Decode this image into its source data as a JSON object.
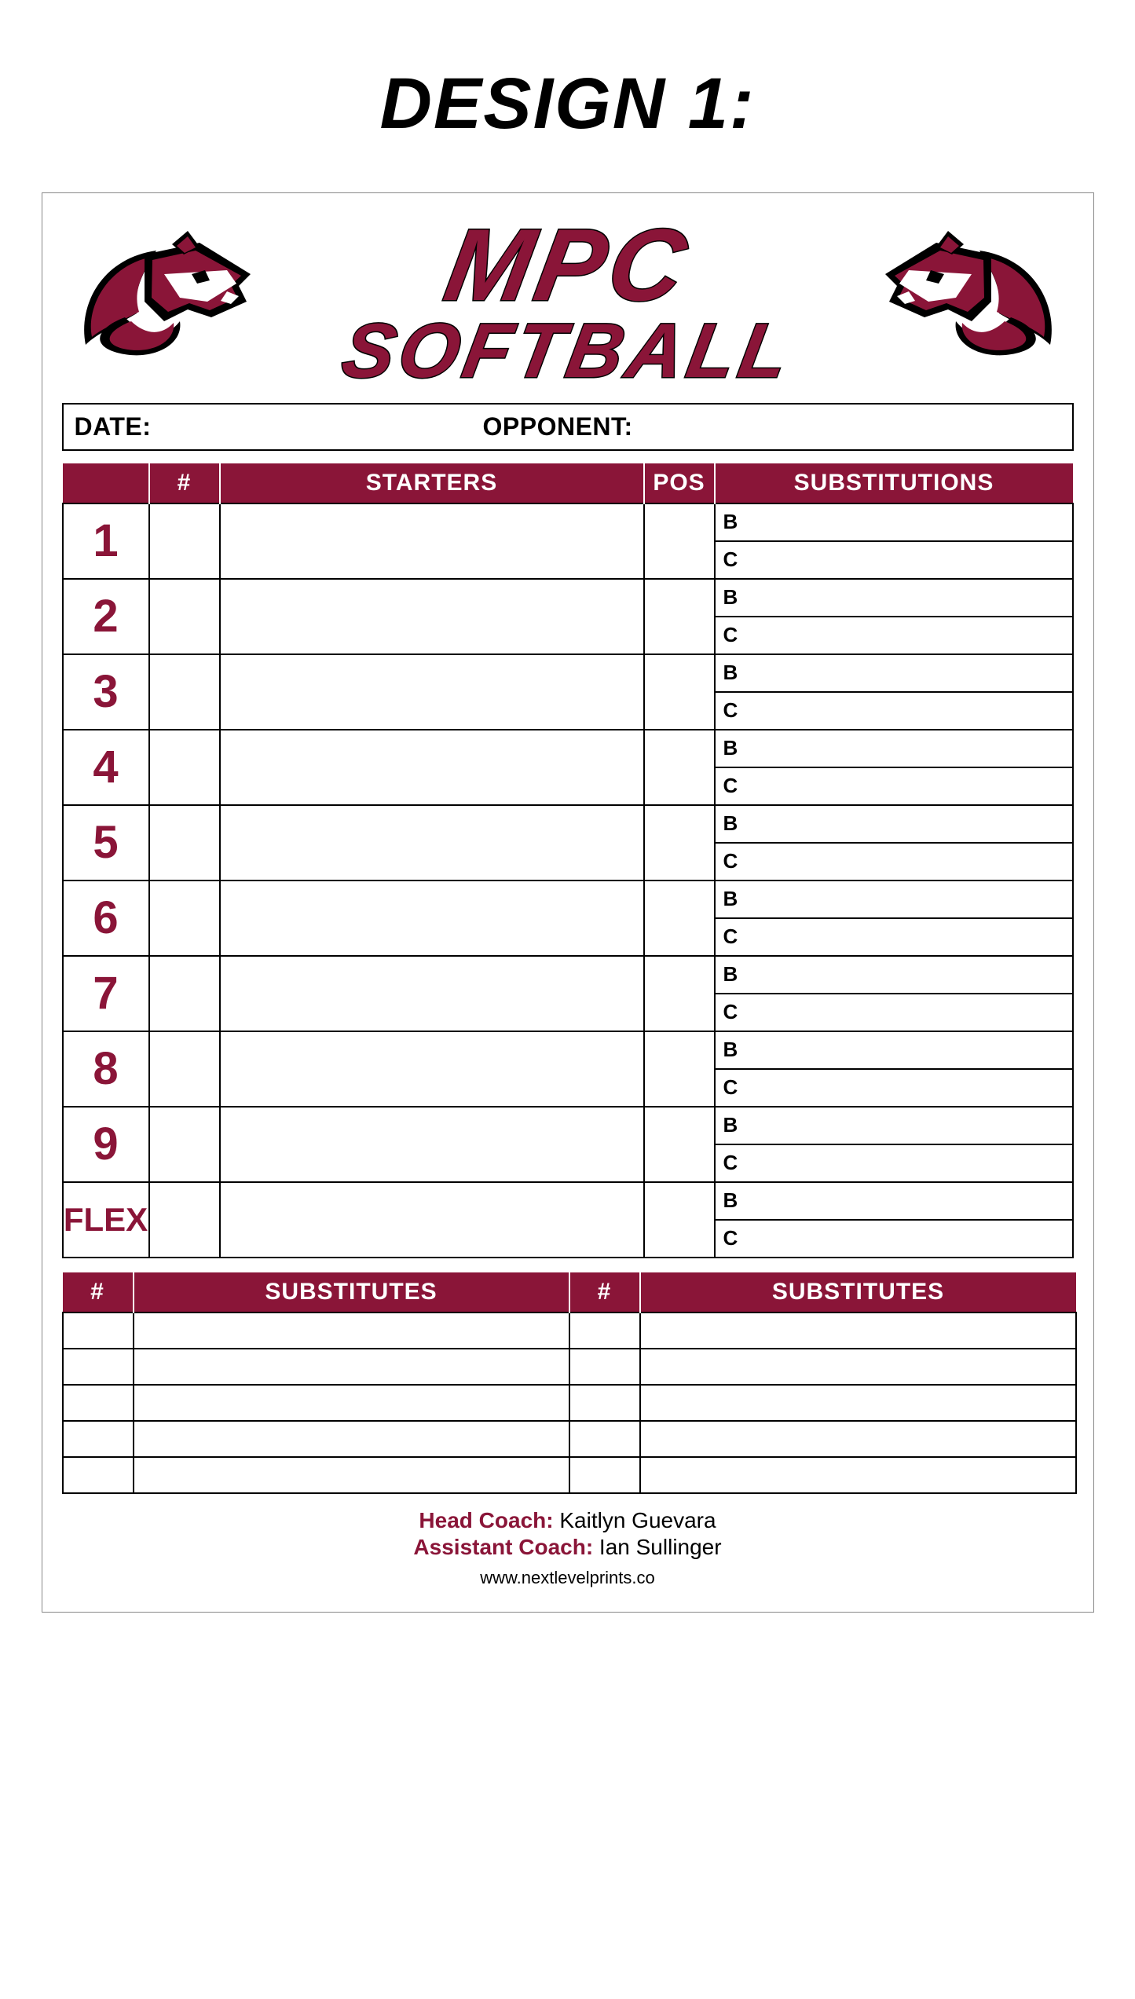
{
  "page": {
    "design_heading": "DESIGN 1:",
    "background_color": "#ffffff"
  },
  "brand": {
    "line1": "MPC",
    "line2": "SOFTBALL",
    "primary_color": "#8a1538",
    "outline_color": "#000000",
    "logo": {
      "body_color": "#8a1538",
      "outline_color": "#000000",
      "accent_color": "#ffffff",
      "eye_color": "#000000"
    }
  },
  "info": {
    "date_label": "DATE:",
    "date_value": "",
    "opponent_label": "OPPONENT:",
    "opponent_value": ""
  },
  "lineup": {
    "header_bg": "#8a1538",
    "header_text_color": "#ffffff",
    "headers": {
      "order": "",
      "number": "#",
      "starters": "STARTERS",
      "pos": "POS",
      "subs": "SUBSTITUTIONS"
    },
    "order_text_color": "#8a1538",
    "sub_labels": {
      "b": "B",
      "c": "C"
    },
    "rows": [
      {
        "order": "1",
        "num": "",
        "starter": "",
        "pos": ""
      },
      {
        "order": "2",
        "num": "",
        "starter": "",
        "pos": ""
      },
      {
        "order": "3",
        "num": "",
        "starter": "",
        "pos": ""
      },
      {
        "order": "4",
        "num": "",
        "starter": "",
        "pos": ""
      },
      {
        "order": "5",
        "num": "",
        "starter": "",
        "pos": ""
      },
      {
        "order": "6",
        "num": "",
        "starter": "",
        "pos": ""
      },
      {
        "order": "7",
        "num": "",
        "starter": "",
        "pos": ""
      },
      {
        "order": "8",
        "num": "",
        "starter": "",
        "pos": ""
      },
      {
        "order": "9",
        "num": "",
        "starter": "",
        "pos": ""
      },
      {
        "order": "FLEX",
        "num": "",
        "starter": "",
        "pos": ""
      }
    ]
  },
  "substitutes": {
    "header_bg": "#8a1538",
    "headers": {
      "num": "#",
      "subs": "SUBSTITUTES"
    },
    "rows": [
      {
        "n1": "",
        "s1": "",
        "n2": "",
        "s2": ""
      },
      {
        "n1": "",
        "s1": "",
        "n2": "",
        "s2": ""
      },
      {
        "n1": "",
        "s1": "",
        "n2": "",
        "s2": ""
      },
      {
        "n1": "",
        "s1": "",
        "n2": "",
        "s2": ""
      },
      {
        "n1": "",
        "s1": "",
        "n2": "",
        "s2": ""
      }
    ]
  },
  "coaches": {
    "label_color": "#8a1538",
    "head_label": "Head Coach:",
    "head_name": "Kaitlyn Guevara",
    "asst_label": "Assistant Coach:",
    "asst_name": "Ian Sullinger"
  },
  "footer": {
    "website": "www.nextlevelprints.co"
  }
}
